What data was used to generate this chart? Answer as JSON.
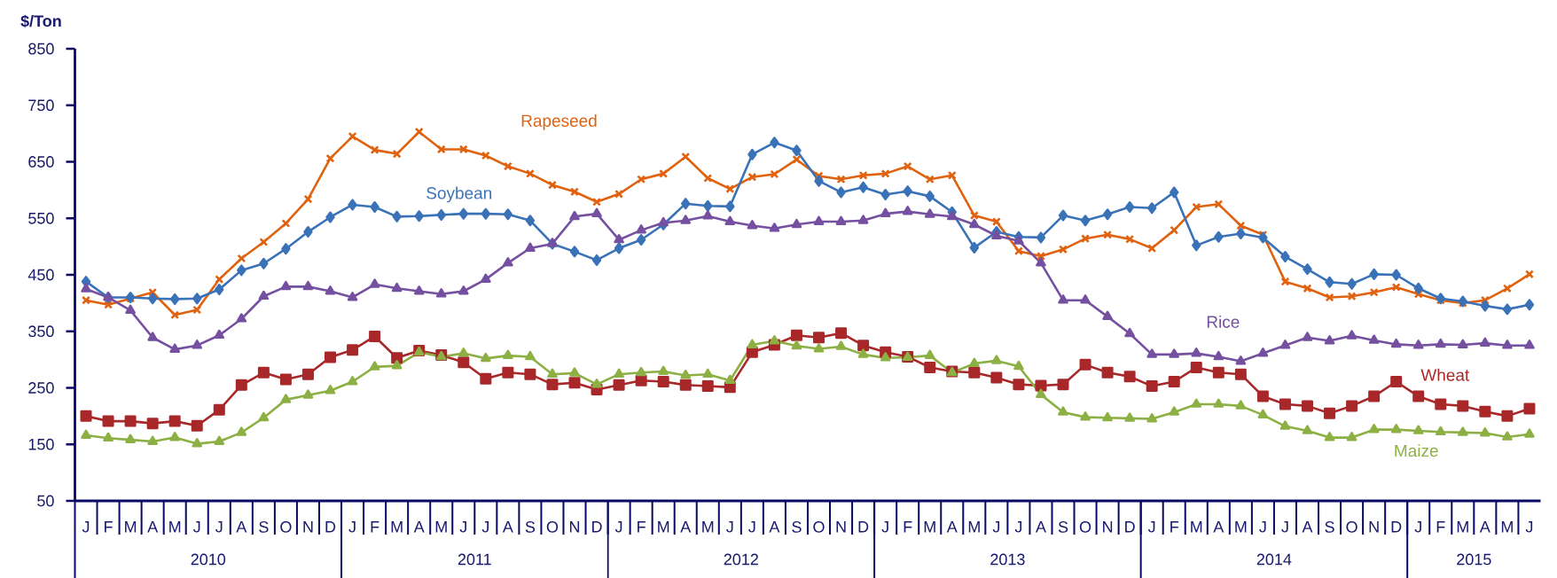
{
  "chart_data": {
    "type": "line",
    "ylabel": "$/Ton",
    "categories": [
      "J",
      "F",
      "M",
      "A",
      "M",
      "J",
      "J",
      "A",
      "S",
      "O",
      "N",
      "D",
      "J",
      "F",
      "M",
      "A",
      "M",
      "J",
      "J",
      "A",
      "S",
      "O",
      "N",
      "D",
      "J",
      "F",
      "M",
      "A",
      "M",
      "J",
      "J",
      "A",
      "S",
      "O",
      "N",
      "D",
      "J",
      "F",
      "M",
      "A",
      "M",
      "J",
      "J",
      "A",
      "S",
      "O",
      "N",
      "D",
      "J",
      "F",
      "M",
      "A",
      "M",
      "J",
      "J",
      "A",
      "S",
      "O",
      "N",
      "D",
      "J",
      "F",
      "M",
      "A",
      "M",
      "J"
    ],
    "ylim": [
      50,
      850
    ],
    "yticks": [
      50,
      150,
      250,
      350,
      450,
      550,
      650,
      750,
      850
    ],
    "annotations": [
      "2010",
      "2011",
      "2012",
      "2013",
      "2014",
      "2015"
    ],
    "series": [
      {
        "name": "Rapeseed",
        "color": "#e0620f",
        "marker": "cross",
        "values": [
          405,
          397,
          408,
          419,
          379,
          388,
          442,
          479,
          508,
          541,
          584,
          656,
          695,
          671,
          664,
          703,
          672,
          672,
          661,
          642,
          629,
          609,
          597,
          579,
          593,
          619,
          629,
          659,
          621,
          602,
          623,
          628,
          654,
          625,
          619,
          626,
          629,
          642,
          619,
          626,
          555,
          544,
          492,
          483,
          495,
          514,
          521,
          513,
          497,
          529,
          570,
          575,
          537,
          521,
          438,
          426,
          410,
          412,
          419,
          428,
          416,
          405,
          400,
          405,
          426,
          451
        ]
      },
      {
        "name": "Soybean",
        "color": "#3a72b8",
        "marker": "diamond",
        "values": [
          438,
          410,
          410,
          408,
          407,
          408,
          424,
          458,
          470,
          496,
          526,
          552,
          574,
          570,
          553,
          554,
          556,
          558,
          558,
          557,
          546,
          505,
          491,
          476,
          497,
          512,
          539,
          576,
          572,
          571,
          663,
          684,
          670,
          616,
          596,
          605,
          592,
          598,
          589,
          561,
          498,
          526,
          517,
          516,
          555,
          546,
          557,
          570,
          568,
          596,
          502,
          517,
          523,
          516,
          482,
          460,
          437,
          434,
          451,
          450,
          426,
          408,
          403,
          395,
          389,
          397
        ]
      },
      {
        "name": "Rice",
        "color": "#7650a0",
        "marker": "triangle",
        "values": [
          425,
          410,
          387,
          339,
          318,
          325,
          343,
          372,
          412,
          429,
          429,
          421,
          410,
          433,
          426,
          421,
          416,
          421,
          442,
          471,
          497,
          505,
          553,
          558,
          512,
          529,
          542,
          546,
          554,
          544,
          537,
          532,
          539,
          544,
          544,
          546,
          558,
          562,
          557,
          553,
          539,
          519,
          510,
          471,
          405,
          405,
          376,
          346,
          309,
          309,
          311,
          305,
          297,
          311,
          325,
          339,
          333,
          342,
          334,
          327,
          325,
          327,
          326,
          329,
          325,
          325
        ]
      },
      {
        "name": "Wheat",
        "color": "#a8282a",
        "marker": "square",
        "values": [
          200,
          191,
          191,
          187,
          191,
          183,
          211,
          255,
          277,
          265,
          274,
          304,
          317,
          341,
          303,
          316,
          308,
          295,
          266,
          277,
          274,
          256,
          259,
          247,
          255,
          263,
          261,
          255,
          253,
          251,
          313,
          326,
          343,
          339,
          347,
          325,
          313,
          305,
          286,
          279,
          277,
          268,
          256,
          254,
          256,
          291,
          277,
          270,
          253,
          261,
          286,
          277,
          274,
          235,
          221,
          218,
          205,
          218,
          235,
          261,
          235,
          221,
          218,
          208,
          200,
          213
        ]
      },
      {
        "name": "Maize",
        "color": "#8cb043",
        "marker": "triangle",
        "values": [
          166,
          161,
          158,
          155,
          162,
          151,
          155,
          171,
          197,
          229,
          237,
          245,
          261,
          287,
          289,
          313,
          305,
          311,
          302,
          307,
          305,
          274,
          276,
          256,
          274,
          277,
          279,
          272,
          274,
          263,
          326,
          333,
          324,
          319,
          323,
          309,
          303,
          304,
          307,
          277,
          293,
          298,
          288,
          238,
          207,
          198,
          197,
          196,
          195,
          207,
          221,
          221,
          218,
          202,
          182,
          174,
          162,
          162,
          176,
          176,
          174,
          172,
          171,
          170,
          163,
          168
        ]
      }
    ]
  }
}
